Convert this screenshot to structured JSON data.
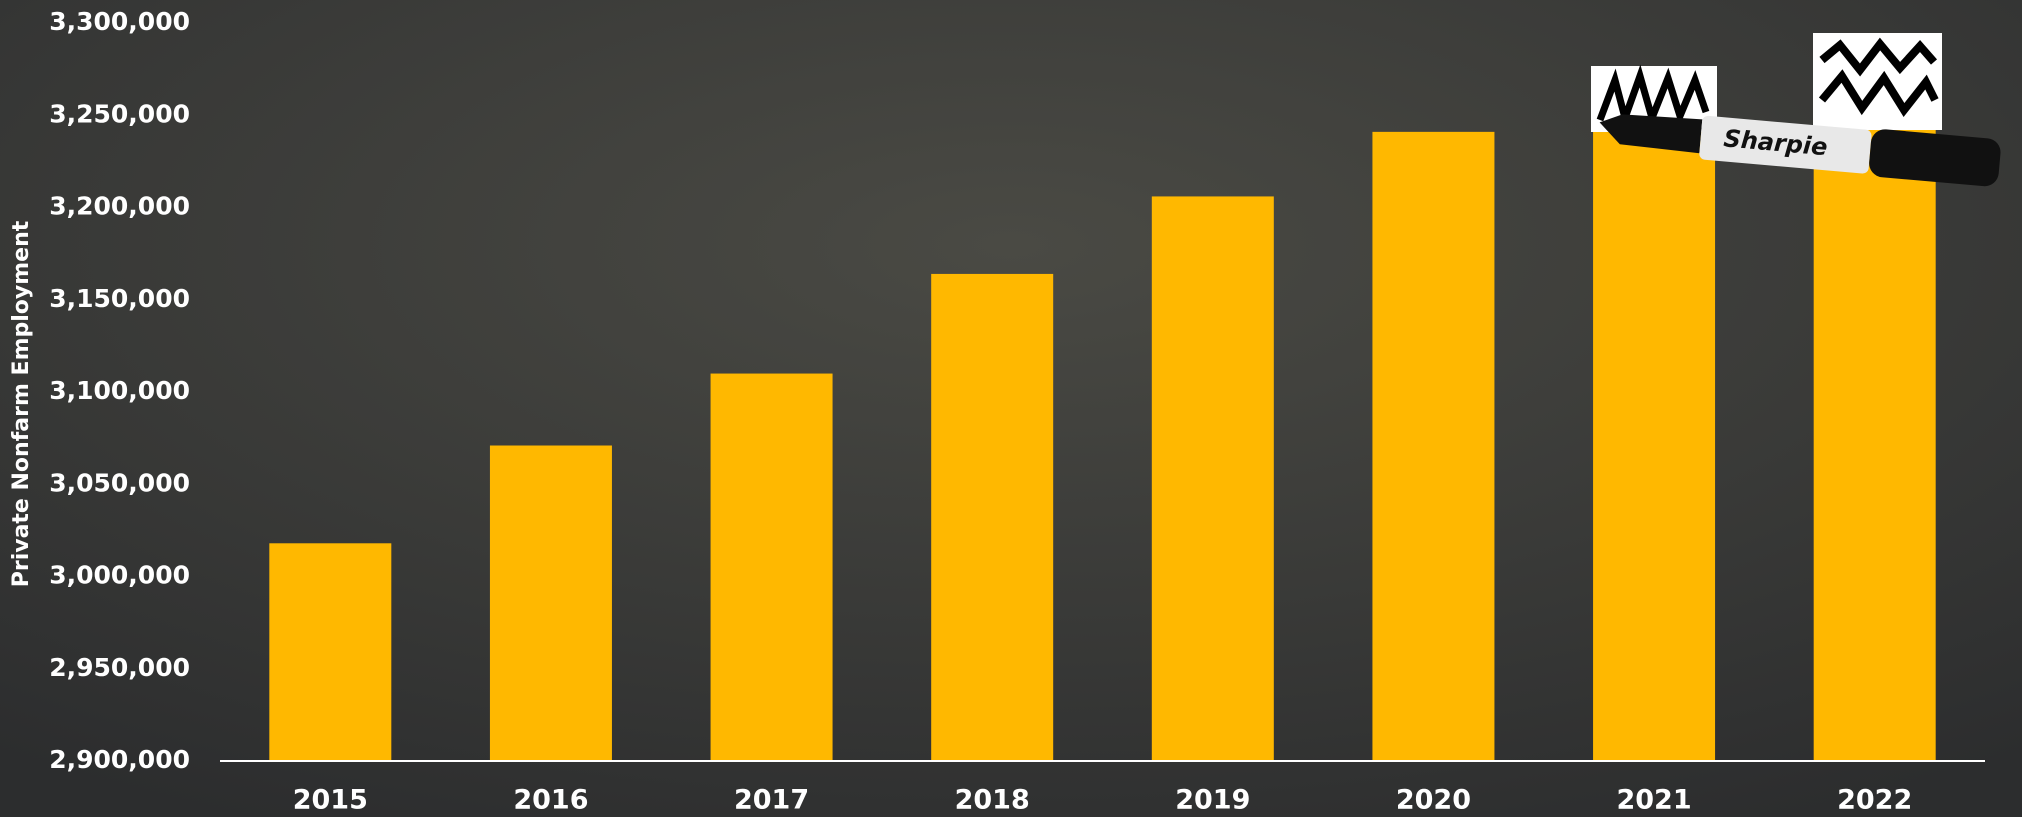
{
  "chart_data": {
    "type": "bar",
    "y_axis_label": "Private Nonfarm Employment",
    "categories": [
      "2015",
      "2016",
      "2017",
      "2018",
      "2019",
      "2020",
      "2021",
      "2022"
    ],
    "values": [
      3018000,
      3071000,
      3110000,
      3164000,
      3206000,
      3241000,
      3244000,
      3245000
    ],
    "color": "#FFB800",
    "ylim": [
      2900000,
      3300000
    ],
    "yticks": [
      {
        "value": 2900000,
        "label": "2,900,000"
      },
      {
        "value": 2950000,
        "label": "2,950,000"
      },
      {
        "value": 3000000,
        "label": "3,000,000"
      },
      {
        "value": 3050000,
        "label": "3,050,000"
      },
      {
        "value": 3100000,
        "label": "3,100,000"
      },
      {
        "value": 3150000,
        "label": "3,150,000"
      },
      {
        "value": 3200000,
        "label": "3,200,000"
      },
      {
        "value": 3250000,
        "label": "3,250,000"
      },
      {
        "value": 3300000,
        "label": "3,300,000"
      }
    ],
    "grid": false
  }
}
